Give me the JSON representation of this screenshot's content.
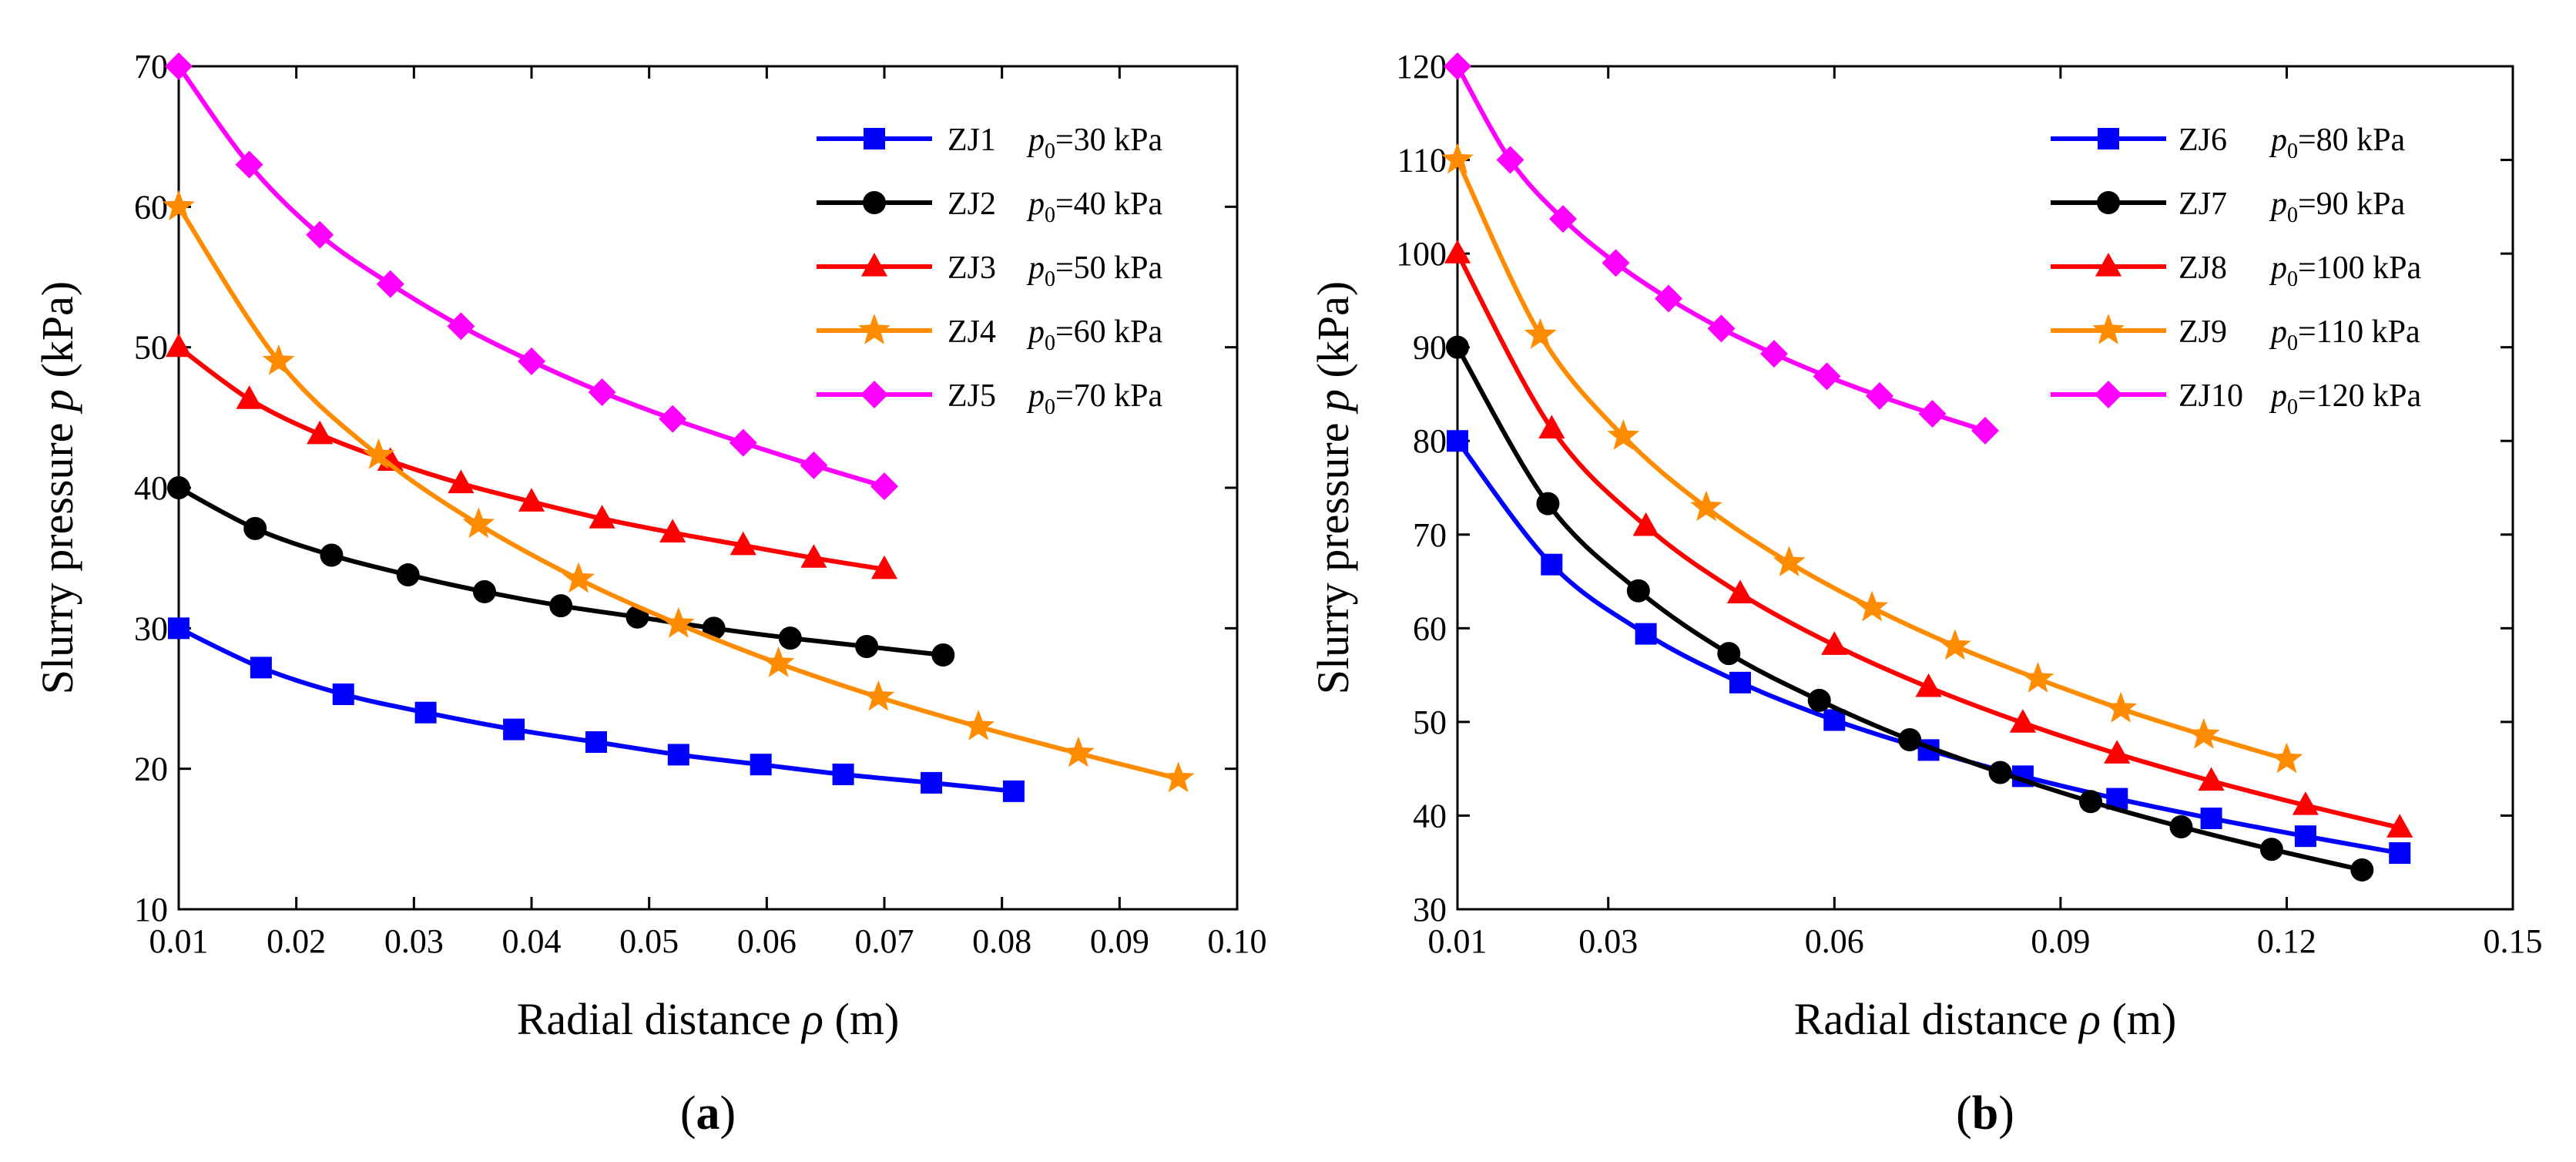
{
  "chart_data": [
    {
      "type": "line",
      "panel_label": "(a)",
      "panel_letter": "a",
      "xlabel_text": "Radial distance ",
      "xlabel_symbol": "ρ",
      "xlabel_unit": " (m)",
      "ylabel_text": "Slurry pressure ",
      "ylabel_symbol": "p",
      "ylabel_unit": " (kPa)",
      "xlim": [
        0.01,
        0.1
      ],
      "ylim": [
        10,
        70
      ],
      "x_ticks": [
        0.01,
        0.02,
        0.03,
        0.04,
        0.05,
        0.06,
        0.07,
        0.08,
        0.09,
        0.1
      ],
      "x_tick_labels": [
        "0.01",
        "0.02",
        "0.03",
        "0.04",
        "0.05",
        "0.06",
        "0.07",
        "0.08",
        "0.09",
        "0.10"
      ],
      "y_ticks": [
        10,
        20,
        30,
        40,
        50,
        60,
        70
      ],
      "y_tick_labels": [
        "10",
        "20",
        "30",
        "40",
        "50",
        "60",
        "70"
      ],
      "legend_position": "top-right",
      "series": [
        {
          "name": "ZJ1",
          "p0_label": "=30 kPa",
          "color": "#0000ff",
          "marker": "square",
          "x": [
            0.01,
            0.017,
            0.024,
            0.031,
            0.0385,
            0.0455,
            0.0525,
            0.0595,
            0.0665,
            0.074,
            0.081
          ],
          "y": [
            30.0,
            27.2,
            25.3,
            24.0,
            22.8,
            21.9,
            21.0,
            20.3,
            19.6,
            19.0,
            18.4
          ]
        },
        {
          "name": "ZJ2",
          "p0_label": "=40 kPa",
          "color": "#000000",
          "marker": "circle",
          "x": [
            0.01,
            0.0165,
            0.023,
            0.0295,
            0.036,
            0.0425,
            0.049,
            0.0555,
            0.062,
            0.0685,
            0.075
          ],
          "y": [
            40.0,
            37.1,
            35.2,
            33.8,
            32.6,
            31.6,
            30.8,
            30.0,
            29.3,
            28.7,
            28.1
          ]
        },
        {
          "name": "ZJ3",
          "p0_label": "=50 kPa",
          "color": "#ff0000",
          "marker": "triangle",
          "x": [
            0.01,
            0.016,
            0.022,
            0.028,
            0.034,
            0.04,
            0.046,
            0.052,
            0.058,
            0.064,
            0.07
          ],
          "y": [
            50.0,
            46.3,
            43.8,
            41.9,
            40.3,
            39.0,
            37.8,
            36.8,
            35.9,
            35.0,
            34.2
          ]
        },
        {
          "name": "ZJ4",
          "p0_label": "=60 kPa",
          "color": "#ff8c00",
          "marker": "star",
          "x": [
            0.01,
            0.0185,
            0.027,
            0.0355,
            0.044,
            0.0525,
            0.061,
            0.0695,
            0.078,
            0.0865,
            0.095
          ],
          "y": [
            60.0,
            49.0,
            42.3,
            37.4,
            33.5,
            30.3,
            27.5,
            25.1,
            23.0,
            21.1,
            19.3
          ]
        },
        {
          "name": "ZJ5",
          "p0_label": "=70 kPa",
          "color": "#ff00ff",
          "marker": "diamond",
          "x": [
            0.01,
            0.016,
            0.022,
            0.028,
            0.034,
            0.04,
            0.046,
            0.052,
            0.058,
            0.064,
            0.07
          ],
          "y": [
            70.0,
            63.0,
            58.0,
            54.5,
            51.5,
            49.0,
            46.8,
            44.9,
            43.2,
            41.6,
            40.1
          ]
        }
      ]
    },
    {
      "type": "line",
      "panel_label": "(b)",
      "panel_letter": "b",
      "xlabel_text": "Radial distance ",
      "xlabel_symbol": "ρ",
      "xlabel_unit": " (m)",
      "ylabel_text": "Slurry pressure ",
      "ylabel_symbol": "p",
      "ylabel_unit": " (kPa)",
      "xlim": [
        0.01,
        0.15
      ],
      "ylim": [
        30,
        120
      ],
      "x_ticks": [
        0.01,
        0.03,
        0.06,
        0.09,
        0.12,
        0.15
      ],
      "x_tick_labels": [
        "0.01",
        "0.03",
        "0.06",
        "0.09",
        "0.12",
        "0.15"
      ],
      "y_ticks": [
        30,
        40,
        50,
        60,
        70,
        80,
        90,
        100,
        110,
        120
      ],
      "y_tick_labels": [
        "30",
        "40",
        "50",
        "60",
        "70",
        "80",
        "90",
        "100",
        "110",
        "120"
      ],
      "legend_position": "top-right",
      "series": [
        {
          "name": "ZJ6",
          "p0_label": "=80 kPa",
          "color": "#0000ff",
          "marker": "square",
          "x": [
            0.01,
            0.0225,
            0.035,
            0.0475,
            0.06,
            0.0725,
            0.085,
            0.0975,
            0.11,
            0.1225,
            0.135
          ],
          "y": [
            80.0,
            66.8,
            59.4,
            54.2,
            50.2,
            47.0,
            44.2,
            41.8,
            39.7,
            37.8,
            36.0
          ]
        },
        {
          "name": "ZJ7",
          "p0_label": "=90 kPa",
          "color": "#000000",
          "marker": "circle",
          "x": [
            0.01,
            0.022,
            0.034,
            0.046,
            0.058,
            0.07,
            0.082,
            0.094,
            0.106,
            0.118,
            0.13
          ],
          "y": [
            90.0,
            73.3,
            64.0,
            57.3,
            52.3,
            48.1,
            44.6,
            41.5,
            38.8,
            36.4,
            34.2
          ]
        },
        {
          "name": "ZJ8",
          "p0_label": "=100 kPa",
          "color": "#ff0000",
          "marker": "triangle",
          "x": [
            0.01,
            0.0225,
            0.035,
            0.0475,
            0.06,
            0.0725,
            0.085,
            0.0975,
            0.11,
            0.1225,
            0.135
          ],
          "y": [
            100.0,
            81.3,
            70.9,
            63.7,
            58.2,
            53.7,
            49.9,
            46.6,
            43.7,
            41.1,
            38.7
          ]
        },
        {
          "name": "ZJ9",
          "p0_label": "=110 kPa",
          "color": "#ff8c00",
          "marker": "star",
          "x": [
            0.01,
            0.021,
            0.032,
            0.043,
            0.054,
            0.065,
            0.076,
            0.087,
            0.098,
            0.109,
            0.12
          ],
          "y": [
            110.0,
            91.3,
            80.5,
            72.9,
            67.0,
            62.2,
            58.1,
            54.6,
            51.4,
            48.6,
            46.0
          ]
        },
        {
          "name": "ZJ10",
          "p0_label": "=120 kPa",
          "color": "#ff00ff",
          "marker": "diamond",
          "x": [
            0.01,
            0.017,
            0.024,
            0.031,
            0.038,
            0.045,
            0.052,
            0.059,
            0.066,
            0.073,
            0.08
          ],
          "y": [
            120.0,
            110.0,
            103.7,
            99.0,
            95.2,
            92.0,
            89.3,
            86.9,
            84.8,
            82.9,
            81.1
          ]
        }
      ]
    }
  ]
}
